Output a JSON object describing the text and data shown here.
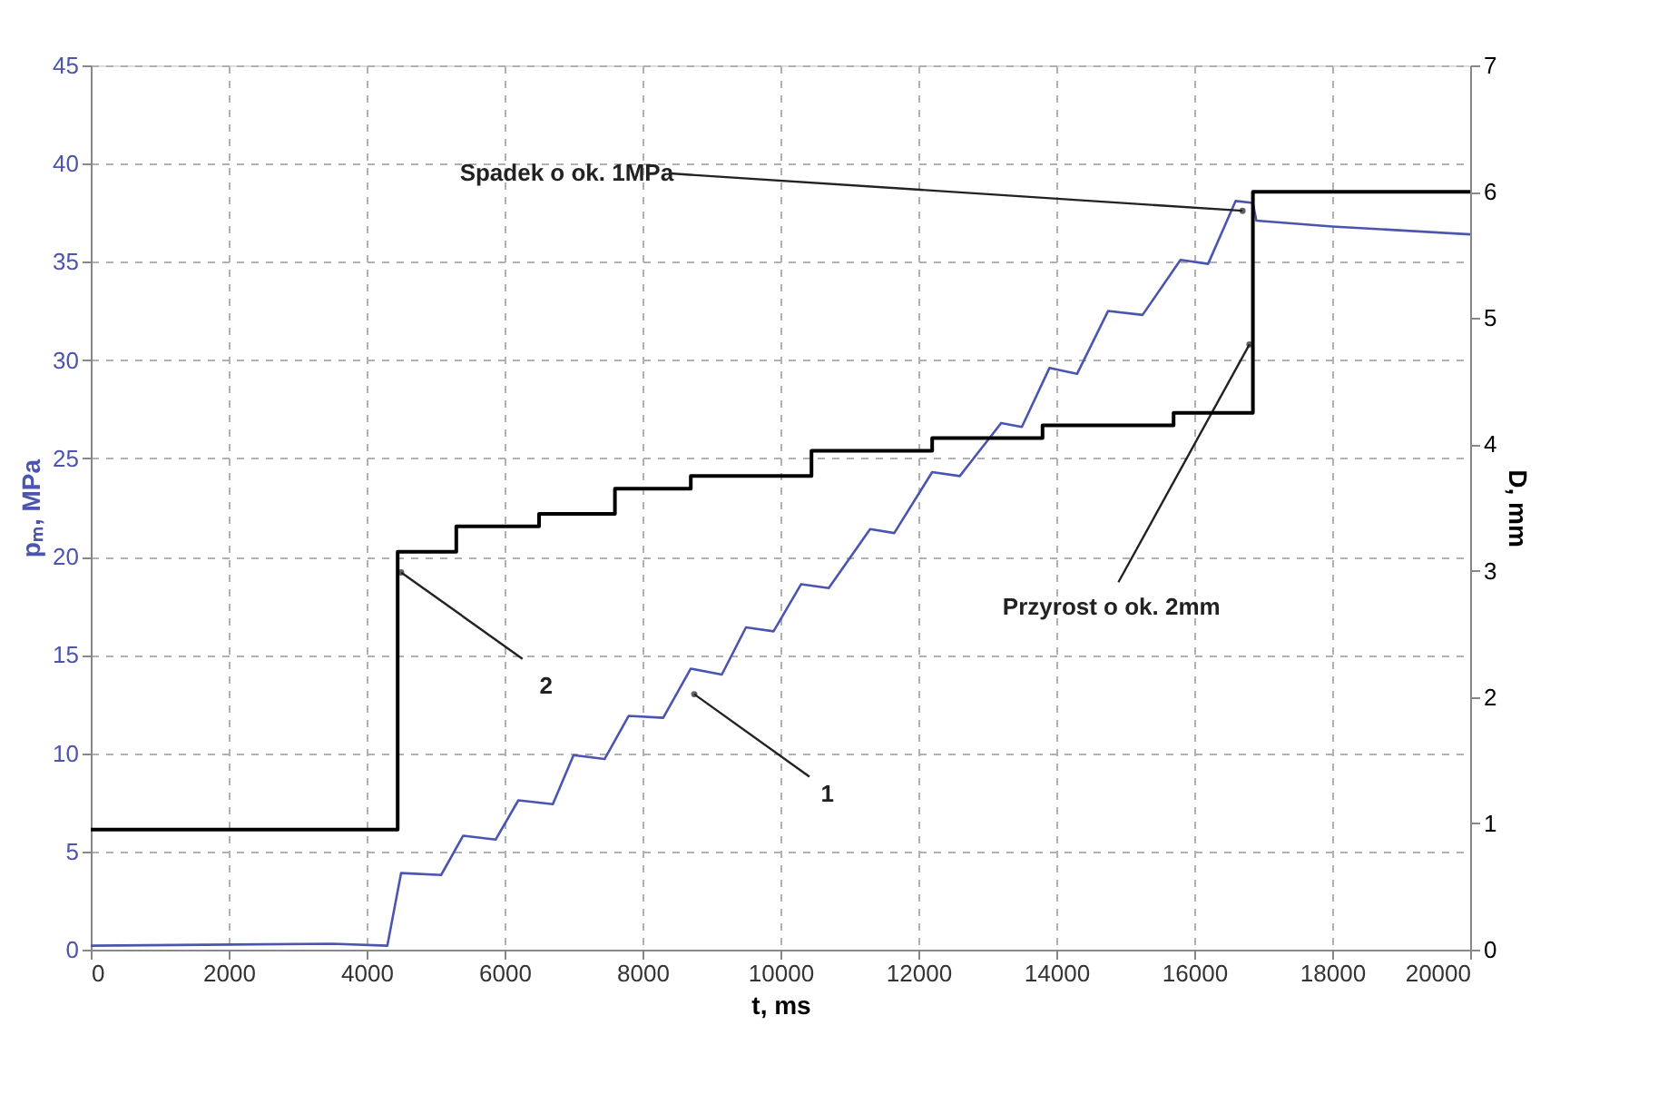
{
  "chart_data": {
    "type": "line",
    "xlabel": "t, ms",
    "ylabel": "pₘ, MPa",
    "y2label": "D, mm",
    "xlim": [
      0,
      20000
    ],
    "xticks": [
      0,
      2000,
      4000,
      6000,
      8000,
      10000,
      12000,
      14000,
      16000,
      18000,
      20000
    ],
    "ylim": [
      0,
      45
    ],
    "yticks": [
      0,
      5,
      10,
      15,
      20,
      25,
      30,
      35,
      40,
      45
    ],
    "y2lim": [
      0,
      7
    ],
    "y2ticks": [
      0,
      1,
      2,
      3,
      4,
      5,
      6,
      7
    ],
    "grid": true,
    "marker": "none",
    "line_style": "solid",
    "series": [
      {
        "type": "line",
        "color": "#4b55b0",
        "x": [
          0,
          3500,
          4300,
          4500,
          5080,
          5400,
          5870,
          6200,
          6700,
          7000,
          7450,
          7800,
          8300,
          8700,
          9150,
          9500,
          9900,
          10300,
          10700,
          11300,
          11650,
          12200,
          12600,
          13200,
          13500,
          13900,
          14300,
          14750,
          15250,
          15800,
          16200,
          16600,
          16850,
          16900,
          18000,
          20000
        ],
        "values": [
          0.2,
          0.3,
          0.2,
          3.9,
          3.8,
          5.8,
          5.6,
          7.6,
          7.4,
          9.9,
          9.7,
          11.9,
          11.8,
          14.3,
          14.0,
          16.4,
          16.2,
          18.6,
          18.4,
          21.4,
          21.2,
          24.3,
          24.1,
          26.8,
          26.6,
          29.6,
          29.3,
          32.5,
          32.3,
          35.1,
          34.9,
          38.1,
          38.0,
          37.1,
          36.8,
          36.4
        ]
      },
      {
        "type": "step",
        "axis": "y2",
        "color": "#000000",
        "x": [
          0,
          4450,
          5300,
          6500,
          7600,
          8700,
          10450,
          12200,
          13800,
          15700,
          16850,
          20000
        ],
        "values": [
          0.95,
          3.15,
          3.35,
          3.45,
          3.65,
          3.75,
          3.95,
          4.05,
          4.15,
          4.25,
          6.0,
          6.0
        ]
      }
    ],
    "annotations": [
      {
        "text": "Spadek o ok. 1MPa",
        "x": 16700,
        "y": 37.6
      },
      {
        "text": "Przyrost o ok. 2mm",
        "x": 16800,
        "y": 30.8
      },
      {
        "text": "1",
        "x": 8750,
        "y": 13.0
      },
      {
        "text": "2",
        "x": 4500,
        "y": 19.2
      }
    ]
  }
}
